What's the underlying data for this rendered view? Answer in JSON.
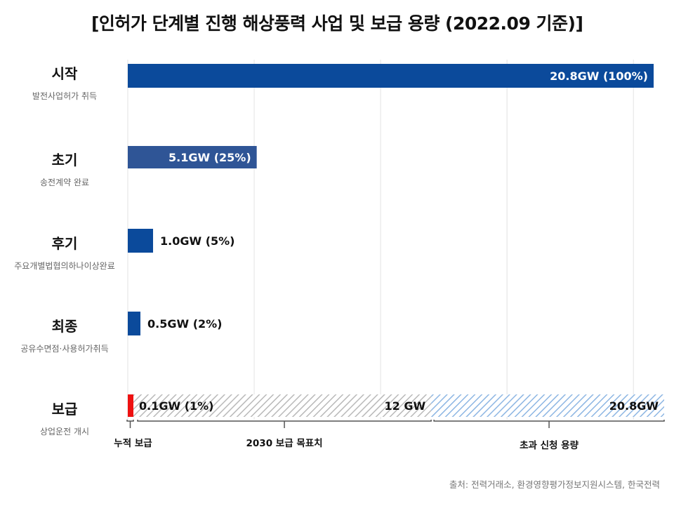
{
  "title": "[인허가 단계별 진행 해상풍력 사업 및 보급 용량 (2022.09 기준)]",
  "source": "출처: 전력거래소, 환경영향평가정보지원시스템, 한국전력",
  "chart_data": {
    "type": "bar",
    "orientation": "horizontal",
    "unit": "GW",
    "xlim": [
      0,
      20.8
    ],
    "grid": true,
    "categories": [
      {
        "name": "시작",
        "desc": "발전사업허가 취득",
        "value": 20.8,
        "label": "20.8GW (100%)",
        "color": "#0b4a9b",
        "label_inside": true
      },
      {
        "name": "초기",
        "desc": "송전계약 완료",
        "value": 5.1,
        "label": "5.1GW (25%)",
        "color": "#2f5596",
        "label_inside": true
      },
      {
        "name": "후기",
        "desc": "주요개별법협의하나이상완료",
        "value": 1.0,
        "label": "1.0GW (5%)",
        "color": "#0b4a9b",
        "label_inside": false
      },
      {
        "name": "최종",
        "desc": "공유수면점·사용허가취득",
        "value": 0.5,
        "label": "0.5GW (2%)",
        "color": "#0b4a9b",
        "label_inside": false
      }
    ],
    "supply": {
      "name": "보급",
      "desc": "상업운전 개시",
      "cumulative": {
        "value": 0.1,
        "label": "0.1GW (1%)",
        "color": "#ee1111",
        "brace_label": "누적 보급"
      },
      "target": {
        "value": 12,
        "label": "12 GW",
        "color": "#b9b9b9",
        "brace_label": "2030 보급 목표치"
      },
      "excess": {
        "value": 20.8,
        "label": "20.8GW",
        "color": "#8db6e3",
        "brace_label": "초과 신청 용량"
      }
    }
  }
}
